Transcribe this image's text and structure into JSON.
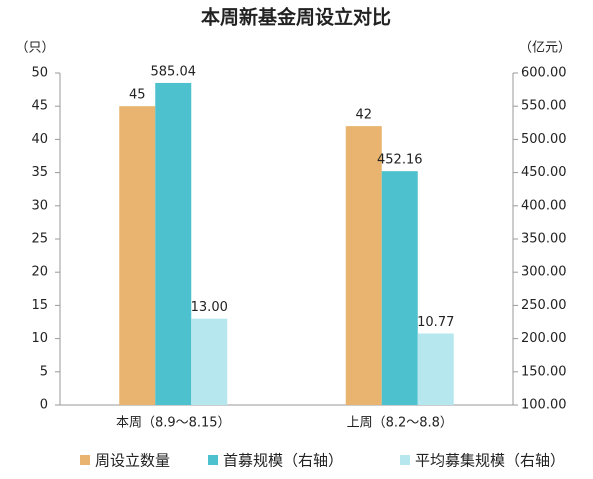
{
  "chart_data": {
    "type": "bar",
    "title": "本周新基金周设立对比",
    "y_label": "（只）",
    "y2_label": "（亿元）",
    "categories": [
      "本周（8.9～8.15）",
      "上周（8.2～8.8）"
    ],
    "series": [
      {
        "name": "周设立数量",
        "color": "#e8b46f",
        "values": [
          45,
          42
        ]
      },
      {
        "name": "首募规模（右轴）",
        "color": "#4dc1cd",
        "axis": "y2",
        "values": [
          585.04,
          452.16
        ]
      },
      {
        "name": "平均募集规模（右轴）",
        "color": "#b6e7ee",
        "values": [
          13.0,
          10.77
        ],
        "value_labels": [
          "13.00",
          "10.77"
        ]
      }
    ],
    "ylim": [
      0,
      50
    ],
    "yticks": [
      0,
      5,
      10,
      15,
      20,
      25,
      30,
      35,
      40,
      45,
      50
    ],
    "y2lim": [
      100,
      600
    ],
    "y2ticks": [
      {
        "value": 100,
        "label": "100.00"
      },
      {
        "value": 150,
        "label": "150.00"
      },
      {
        "value": 200,
        "label": "200.00"
      },
      {
        "value": 250,
        "label": "250.00"
      },
      {
        "value": 300,
        "label": "300.00"
      },
      {
        "value": 350,
        "label": "350.00"
      },
      {
        "value": 400,
        "label": "400.00"
      },
      {
        "value": 450,
        "label": "450.00"
      },
      {
        "value": 500,
        "label": "500.00"
      },
      {
        "value": 550,
        "label": "550.00"
      },
      {
        "value": 600,
        "label": "600.00"
      }
    ]
  }
}
